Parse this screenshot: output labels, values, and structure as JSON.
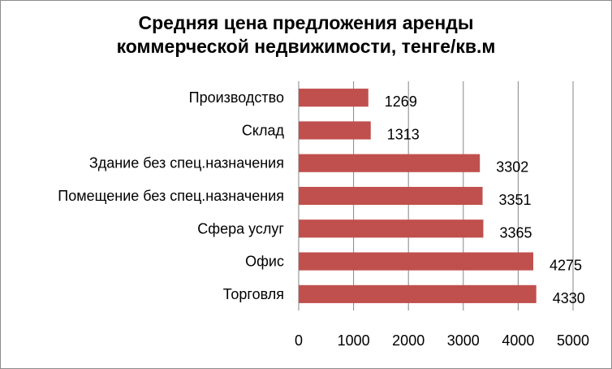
{
  "chart_data": {
    "type": "bar",
    "orientation": "horizontal",
    "title_lines": [
      "Средняя цена  предложения аренды",
      "коммерческой недвижимости, тенге/кв.м"
    ],
    "categories": [
      "Производство",
      "Склад",
      "Здание без спец.назначения",
      "Помещение без спец.назначения",
      "Сфера услуг",
      "Офис",
      "Торговля"
    ],
    "values": [
      1269,
      1313,
      3302,
      3351,
      3365,
      4275,
      4330
    ],
    "xlim": [
      0,
      5000
    ],
    "xticks": [
      0,
      1000,
      2000,
      3000,
      4000,
      5000
    ],
    "grid": "vertical",
    "legend": "none",
    "data_labels": true,
    "bar_color": "#c0504d",
    "grid_color": "#868686"
  }
}
